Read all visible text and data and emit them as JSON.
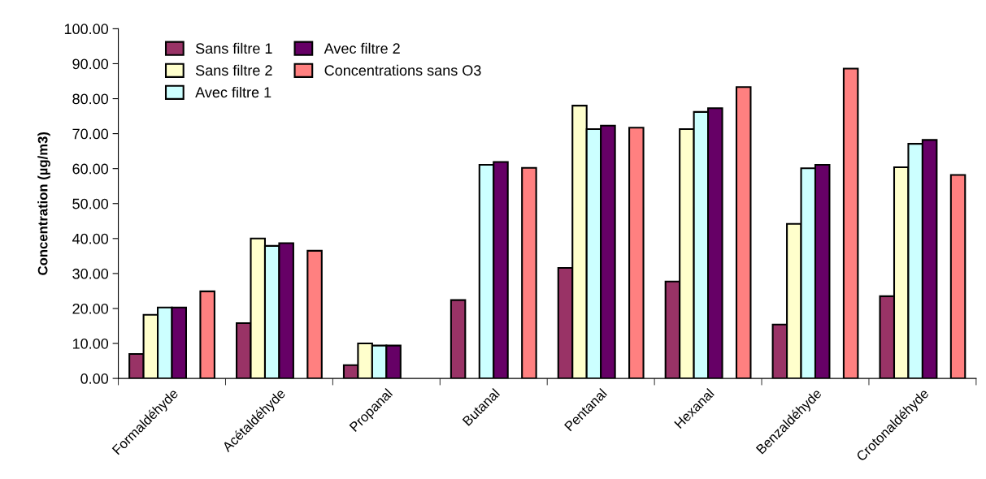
{
  "chart_data": {
    "type": "bar",
    "ylabel": "Concentration (µg/m3)",
    "categories": [
      "Formaldéhyde",
      "Acétaldéhyde",
      "Propanal",
      "Butanal",
      "Pentanal",
      "Hexanal",
      "Benzaldéhyde",
      "Crotonaldéhyde"
    ],
    "series": [
      {
        "name": "Sans filtre 1",
        "color": "#993366",
        "values": [
          7.0,
          15.8,
          3.8,
          22.4,
          31.6,
          27.7,
          15.4,
          23.5
        ]
      },
      {
        "name": "Sans filtre 2",
        "color": "#ffffcc",
        "values": [
          18.2,
          40.0,
          10.0,
          null,
          78.0,
          71.3,
          44.2,
          60.4
        ]
      },
      {
        "name": "Avec filtre 1",
        "color": "#ccffff",
        "values": [
          20.3,
          37.9,
          9.4,
          61.1,
          71.3,
          76.2,
          60.1,
          67.1
        ]
      },
      {
        "name": "Avec filtre 2",
        "color": "#660066",
        "values": [
          20.3,
          38.7,
          9.4,
          61.9,
          72.3,
          77.3,
          61.1,
          68.2
        ]
      },
      {
        "name": "Concentrations sans O3",
        "color": "#ff8080",
        "values": [
          24.9,
          36.5,
          null,
          60.2,
          71.7,
          83.3,
          88.6,
          58.2
        ]
      }
    ],
    "ylim": [
      0,
      100
    ],
    "yticks": [
      {
        "value": 0,
        "label": "0.00"
      },
      {
        "value": 10,
        "label": "10.00"
      },
      {
        "value": 20,
        "label": "20.00"
      },
      {
        "value": 30,
        "label": "30.00"
      },
      {
        "value": 40,
        "label": "40.00"
      },
      {
        "value": 50,
        "label": "50.00"
      },
      {
        "value": 60,
        "label": "60.00"
      },
      {
        "value": 70,
        "label": "70.00"
      },
      {
        "value": 80,
        "label": "80.00"
      },
      {
        "value": 90,
        "label": "90.00"
      },
      {
        "value": 100,
        "label": "100.00"
      }
    ],
    "grid": false,
    "legend": "top left"
  }
}
